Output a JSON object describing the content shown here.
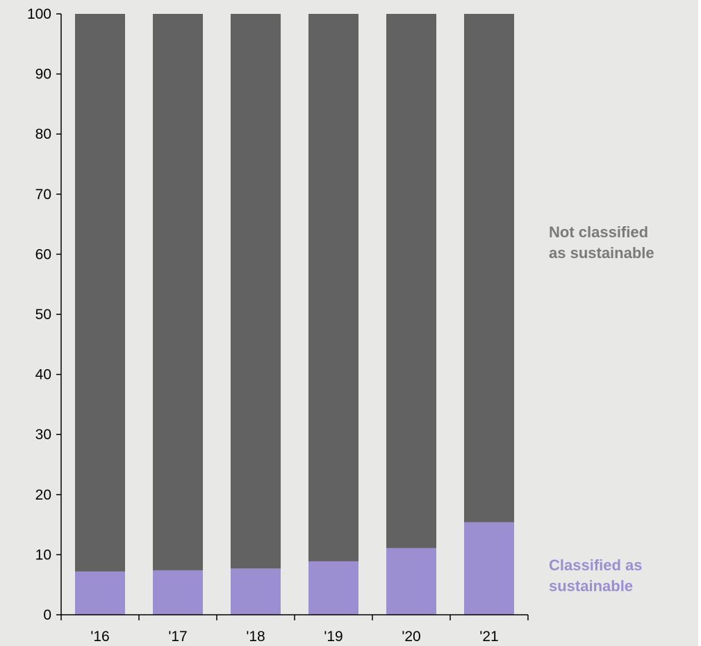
{
  "chart_data": {
    "type": "bar",
    "stacked": true,
    "categories": [
      "'16",
      "'17",
      "'18",
      "'19",
      "'20",
      "'21"
    ],
    "series": [
      {
        "name": "Classified as sustainable",
        "label_lines": [
          "Classified as",
          "sustainable"
        ],
        "color": "#9b8fd1",
        "values": [
          7.2,
          7.4,
          7.7,
          8.9,
          11.1,
          15.4
        ]
      },
      {
        "name": "Not classified as sustainable",
        "label_lines": [
          "Not classified",
          "as sustainable"
        ],
        "color": "#626262",
        "values": [
          92.8,
          92.6,
          92.3,
          91.1,
          88.9,
          84.6
        ]
      }
    ],
    "ylim": [
      0,
      100
    ],
    "yticks": [
      "0",
      "10",
      "20",
      "30",
      "40",
      "50",
      "60",
      "70",
      "80",
      "90",
      "100"
    ],
    "grid": false,
    "legend_placement": "right",
    "colors": {
      "background": "#e8e8e6",
      "axis": "#000000",
      "not_classified_label": "#7a7a7a",
      "classified_label": "#9b8fd1"
    }
  }
}
